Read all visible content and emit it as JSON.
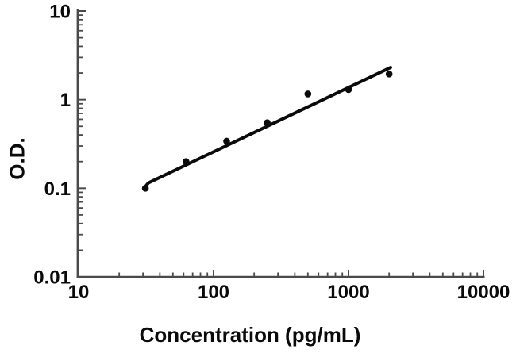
{
  "figure": {
    "background": "#ffffff",
    "axis_color": "#4a4a4a",
    "data_color": "#0a0a0a",
    "text_color": "#0a0a0a"
  },
  "chart_data": {
    "type": "scatter",
    "title": "",
    "xlabel": "Concentration (pg/mL)",
    "ylabel": "O.D.",
    "x_scale": "log",
    "y_scale": "log",
    "xlim": [
      10,
      10000
    ],
    "ylim": [
      0.01,
      10
    ],
    "x_ticks": [
      10,
      100,
      1000,
      10000
    ],
    "x_tick_labels": [
      "10",
      "100",
      "1000",
      "10000"
    ],
    "y_ticks": [
      0.01,
      0.1,
      1,
      10
    ],
    "y_tick_labels": [
      "0.01",
      "0.1",
      "1",
      "10"
    ],
    "grid": false,
    "legend": false,
    "marker": "filled-circle",
    "points": [
      {
        "x": 31.25,
        "y": 0.1
      },
      {
        "x": 62.5,
        "y": 0.2
      },
      {
        "x": 125,
        "y": 0.34
      },
      {
        "x": 250,
        "y": 0.55
      },
      {
        "x": 500,
        "y": 1.16
      },
      {
        "x": 1000,
        "y": 1.3
      },
      {
        "x": 2000,
        "y": 1.95
      }
    ],
    "trendline": {
      "style": "solid",
      "points": [
        {
          "x": 2050,
          "y": 2.31
        },
        {
          "x": 32.9,
          "y": 0.115
        },
        {
          "x": 31.0,
          "y": 0.103
        }
      ]
    }
  }
}
